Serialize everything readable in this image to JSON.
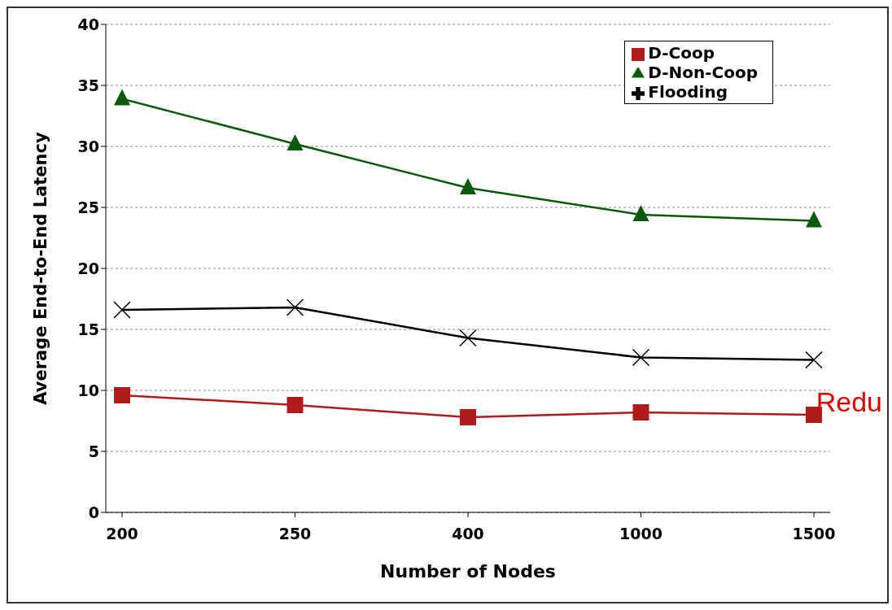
{
  "chart_data": {
    "type": "line",
    "xlabel": "Number of Nodes",
    "ylabel": "Average End-to-End Latency",
    "categories": [
      "200",
      "250",
      "400",
      "1000",
      "1500"
    ],
    "series": [
      {
        "name": "D-Coop",
        "color": "#b01c1c",
        "marker": "square",
        "values": [
          9.6,
          8.8,
          7.8,
          8.2,
          8.0
        ]
      },
      {
        "name": "D-Non-Coop",
        "color": "#0a5a0a",
        "marker": "triangle",
        "values": [
          33.9,
          30.2,
          26.6,
          24.4,
          23.9
        ]
      },
      {
        "name": "Flooding",
        "color": "#000000",
        "marker": "cross",
        "values": [
          16.6,
          16.8,
          14.3,
          12.7,
          12.5
        ]
      }
    ],
    "ylim": [
      0,
      40
    ],
    "yticks": [
      0,
      5,
      10,
      15,
      20,
      25,
      30,
      35,
      40
    ],
    "grid": "y",
    "legend": "top right",
    "line_style": "solid",
    "annotations": [
      "Redu"
    ]
  }
}
